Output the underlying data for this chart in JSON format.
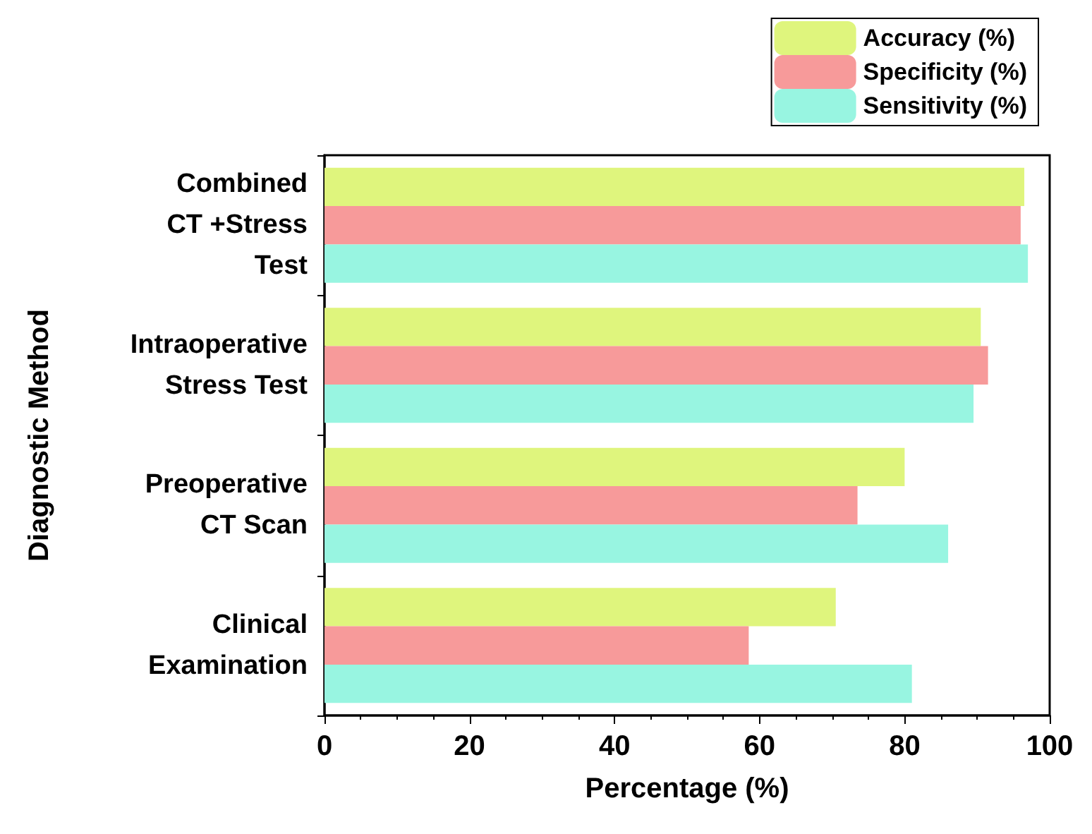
{
  "chart_data": {
    "type": "bar",
    "orientation": "horizontal",
    "xlabel": "Percentage (%)",
    "ylabel": "Diagnostic Method",
    "categories": [
      "Combined\nCT +Stress\nTest",
      "Intraoperative\nStress Test",
      "Preoperative\nCT Scan",
      "Clinical\nExamination"
    ],
    "series": [
      {
        "name": "Accuracy (%)",
        "color": "#dff57d",
        "values": [
          96.5,
          90.5,
          80,
          70.5
        ]
      },
      {
        "name": "Specificity (%)",
        "color": "#f79a9a",
        "values": [
          96,
          91.5,
          73.5,
          58.5
        ]
      },
      {
        "name": "Sensitivity (%)",
        "color": "#98f5e1",
        "values": [
          97,
          89.5,
          86,
          81
        ]
      }
    ],
    "xlim": [
      0,
      100
    ],
    "xticks": [
      0,
      20,
      40,
      60,
      80,
      100
    ],
    "grid": false,
    "legend": "top right"
  }
}
